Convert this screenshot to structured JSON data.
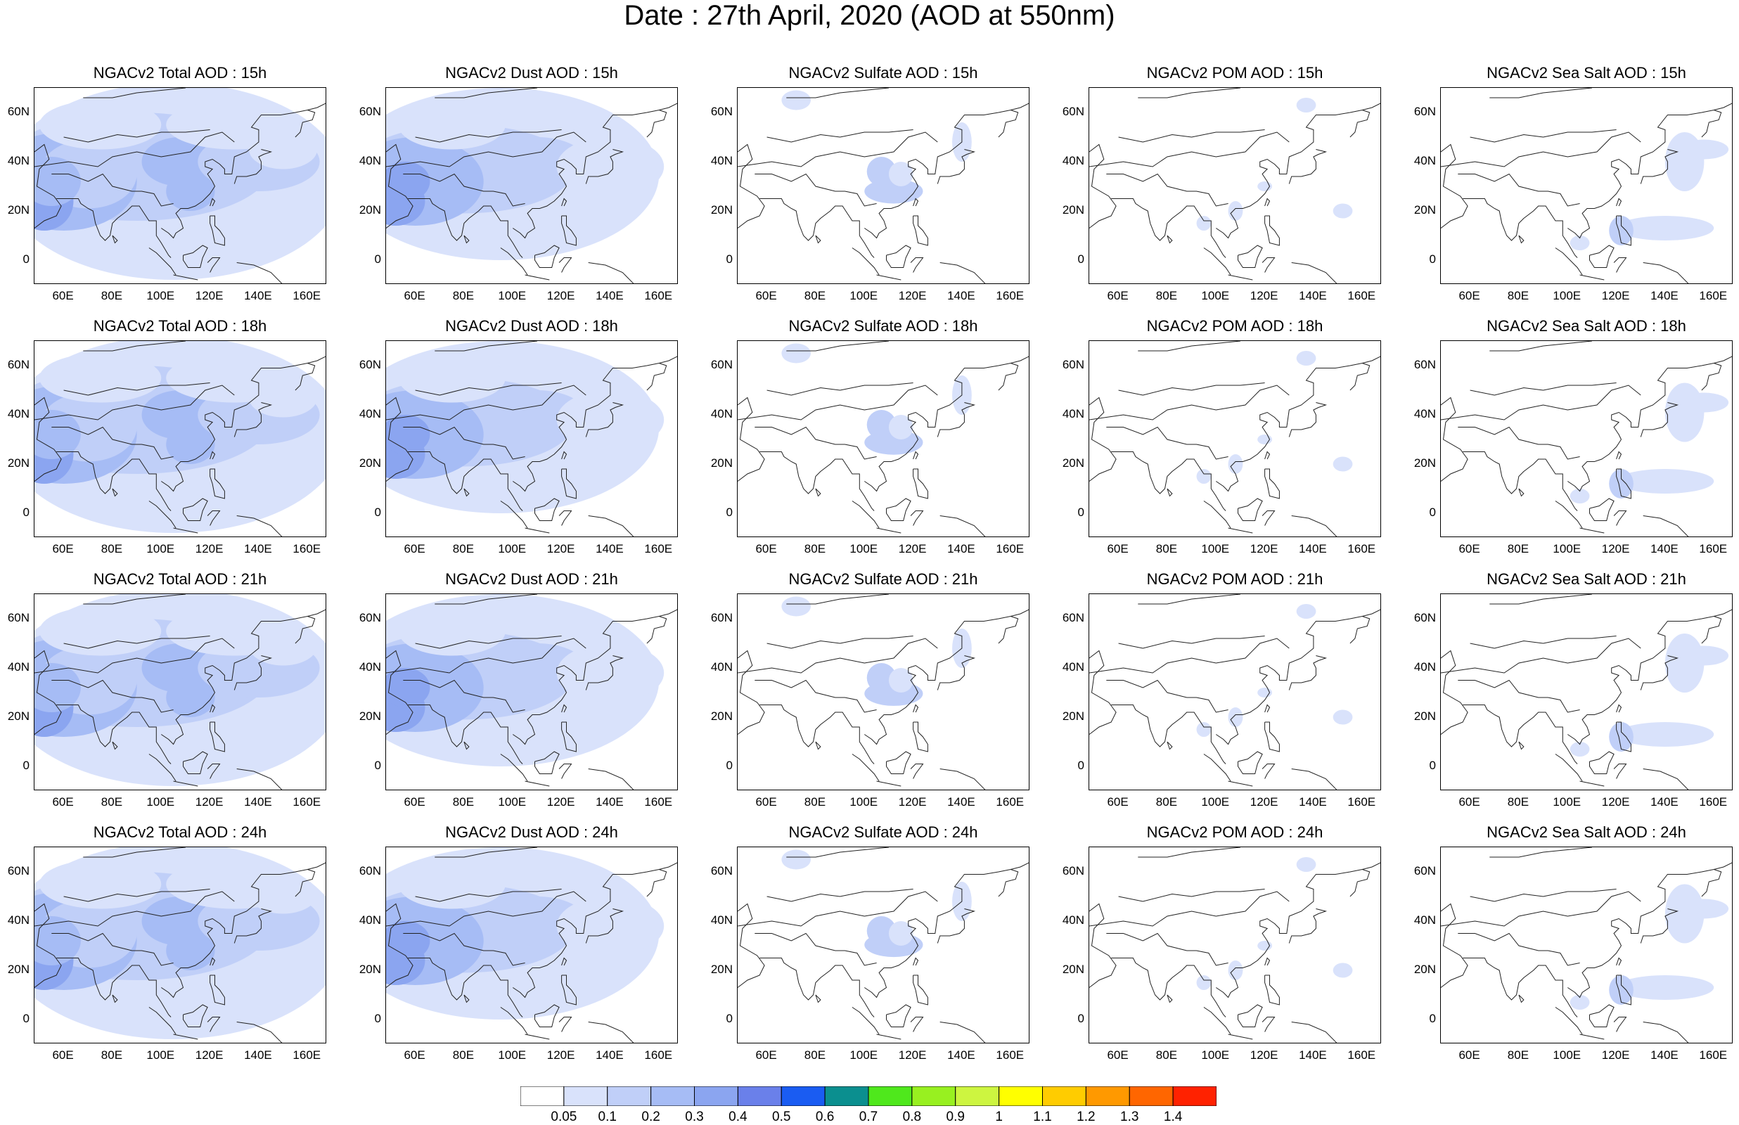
{
  "title": "Date : 27th April, 2020 (AOD at 550nm)",
  "x_ticks": [
    "60E",
    "80E",
    "100E",
    "120E",
    "140E",
    "160E"
  ],
  "y_ticks": [
    "60N",
    "40N",
    "20N",
    "0"
  ],
  "rows": [
    {
      "hour": "15h",
      "titles": [
        "NGACv2 Total AOD : 15h",
        "NGACv2 Dust AOD : 15h",
        "NGACv2 Sulfate AOD : 15h",
        "NGACv2 POM AOD : 15h",
        "NGACv2 Sea Salt AOD : 15h"
      ]
    },
    {
      "hour": "18h",
      "titles": [
        "NGACv2 Total AOD : 18h",
        "NGACv2 Dust AOD : 18h",
        "NGACv2 Sulfate AOD : 18h",
        "NGACv2 POM AOD : 18h",
        "NGACv2 Sea Salt AOD : 18h"
      ]
    },
    {
      "hour": "21h",
      "titles": [
        "NGACv2 Total AOD : 21h",
        "NGACv2 Dust AOD : 21h",
        "NGACv2 Sulfate AOD : 21h",
        "NGACv2 POM AOD : 21h",
        "NGACv2 Sea Salt AOD : 21h"
      ]
    },
    {
      "hour": "24h",
      "titles": [
        "NGACv2 Total AOD : 24h",
        "NGACv2 Dust AOD : 24h",
        "NGACv2 Sulfate AOD : 24h",
        "NGACv2 POM AOD : 24h",
        "NGACv2 Sea Salt  AOD : 24h"
      ]
    }
  ],
  "colorbar": {
    "labels": [
      "0.05",
      "0.1",
      "0.2",
      "0.3",
      "0.4",
      "0.5",
      "0.6",
      "0.7",
      "0.8",
      "0.9",
      "1",
      "1.1",
      "1.2",
      "1.3",
      "1.4"
    ],
    "colors": [
      "#ffffff",
      "#d9e2fb",
      "#c0cff8",
      "#a6bcf5",
      "#8ba5f0",
      "#6a80ea",
      "#1a5cf2",
      "#0b8f8f",
      "#4fe81c",
      "#98f020",
      "#cdf540",
      "#ffff00",
      "#ffcc00",
      "#ff9900",
      "#ff6600",
      "#ff2200"
    ]
  }
}
